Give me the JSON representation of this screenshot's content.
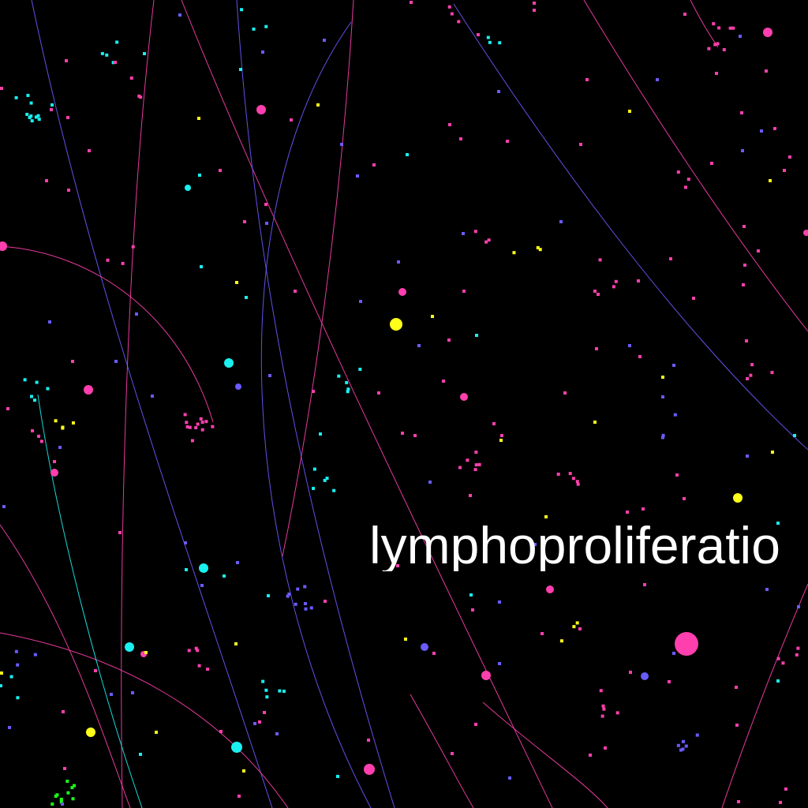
{
  "canvas": {
    "background": "#000000"
  },
  "overlay": {
    "text": "lymphoproliferatio"
  },
  "palette": {
    "magenta": "#ff3fae",
    "blue": "#6a5bff",
    "cyan": "#19f0f0",
    "yellow": "#ffff1a",
    "green": "#1aff1a",
    "orange": "#ff9a3a",
    "white": "#ffffff"
  }
}
